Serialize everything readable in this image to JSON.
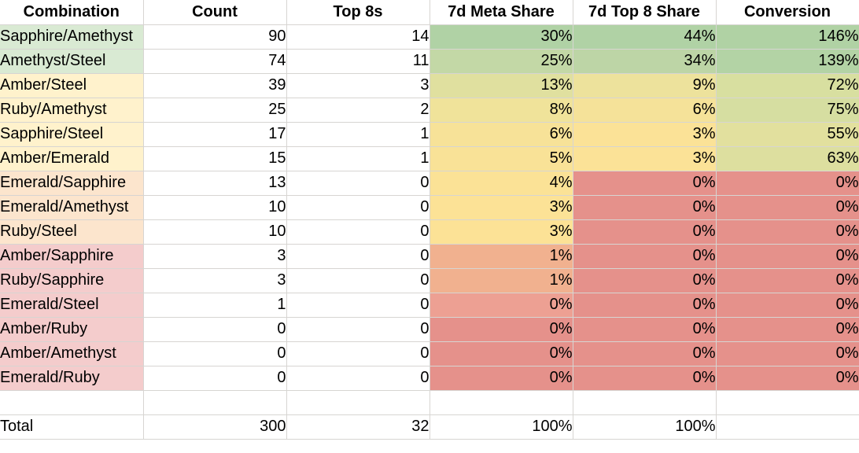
{
  "sheet": {
    "columns": [
      "Combination",
      "Count",
      "Top 8s",
      "7d Meta Share",
      "7d Top 8 Share",
      "Conversion"
    ],
    "rows": [
      {
        "combination": "Sapphire/Amethyst",
        "count": "90",
        "top8s": "14",
        "meta": "30%",
        "top8_share": "44%",
        "conversion": "146%",
        "bg": {
          "combination": "#d9ead3",
          "meta": "#b0d2a5",
          "top8_share": "#b0d2a5",
          "conversion": "#b0d2a4"
        }
      },
      {
        "combination": "Amethyst/Steel",
        "count": "74",
        "top8s": "11",
        "meta": "25%",
        "top8_share": "34%",
        "conversion": "139%",
        "bg": {
          "combination": "#d9ead3",
          "meta": "#c3d8a6",
          "top8_share": "#bdd5a6",
          "conversion": "#b3d3a5"
        }
      },
      {
        "combination": "Amber/Steel",
        "count": "39",
        "top8s": "3",
        "meta": "13%",
        "top8_share": "9%",
        "conversion": "72%",
        "bg": {
          "combination": "#fff2cc",
          "meta": "#e0e09f",
          "top8_share": "#ede29c",
          "conversion": "#d8dfa0"
        }
      },
      {
        "combination": "Ruby/Amethyst",
        "count": "25",
        "top8s": "2",
        "meta": "8%",
        "top8_share": "6%",
        "conversion": "75%",
        "bg": {
          "combination": "#fff2cc",
          "meta": "#f0e39a",
          "top8_share": "#f5e299",
          "conversion": "#d6dea1"
        }
      },
      {
        "combination": "Sapphire/Steel",
        "count": "17",
        "top8s": "1",
        "meta": "6%",
        "top8_share": "3%",
        "conversion": "55%",
        "bg": {
          "combination": "#fff2cc",
          "meta": "#f7e298",
          "top8_share": "#fbe297",
          "conversion": "#e2e09e"
        }
      },
      {
        "combination": "Amber/Emerald",
        "count": "15",
        "top8s": "1",
        "meta": "5%",
        "top8_share": "3%",
        "conversion": "63%",
        "bg": {
          "combination": "#fff2cc",
          "meta": "#f9e297",
          "top8_share": "#fbe297",
          "conversion": "#dddf9f"
        }
      },
      {
        "combination": "Emerald/Sapphire",
        "count": "13",
        "top8s": "0",
        "meta": "4%",
        "top8_share": "0%",
        "conversion": "0%",
        "bg": {
          "combination": "#fce5cd",
          "meta": "#fbe296",
          "top8_share": "#e5918b",
          "conversion": "#e5918b"
        }
      },
      {
        "combination": "Emerald/Amethyst",
        "count": "10",
        "top8s": "0",
        "meta": "3%",
        "top8_share": "0%",
        "conversion": "0%",
        "bg": {
          "combination": "#fce5cd",
          "meta": "#fce296",
          "top8_share": "#e5918b",
          "conversion": "#e5918b"
        }
      },
      {
        "combination": "Ruby/Steel",
        "count": "10",
        "top8s": "0",
        "meta": "3%",
        "top8_share": "0%",
        "conversion": "0%",
        "bg": {
          "combination": "#fce5cd",
          "meta": "#fce296",
          "top8_share": "#e5918b",
          "conversion": "#e5918b"
        }
      },
      {
        "combination": "Amber/Sapphire",
        "count": "3",
        "top8s": "0",
        "meta": "1%",
        "top8_share": "0%",
        "conversion": "0%",
        "bg": {
          "combination": "#f4cccc",
          "meta": "#f1b18f",
          "top8_share": "#e5918b",
          "conversion": "#e5918b"
        }
      },
      {
        "combination": "Ruby/Sapphire",
        "count": "3",
        "top8s": "0",
        "meta": "1%",
        "top8_share": "0%",
        "conversion": "0%",
        "bg": {
          "combination": "#f4cccc",
          "meta": "#f1b18f",
          "top8_share": "#e5918b",
          "conversion": "#e5918b"
        }
      },
      {
        "combination": "Emerald/Steel",
        "count": "1",
        "top8s": "0",
        "meta": "0%",
        "top8_share": "0%",
        "conversion": "0%",
        "bg": {
          "combination": "#f4cccc",
          "meta": "#eda093",
          "top8_share": "#e5918b",
          "conversion": "#e5918b"
        }
      },
      {
        "combination": "Amber/Ruby",
        "count": "0",
        "top8s": "0",
        "meta": "0%",
        "top8_share": "0%",
        "conversion": "0%",
        "bg": {
          "combination": "#f4cccc",
          "meta": "#e5918b",
          "top8_share": "#e5918b",
          "conversion": "#e5918b"
        }
      },
      {
        "combination": "Amber/Amethyst",
        "count": "0",
        "top8s": "0",
        "meta": "0%",
        "top8_share": "0%",
        "conversion": "0%",
        "bg": {
          "combination": "#f4cccc",
          "meta": "#e5918b",
          "top8_share": "#e5918b",
          "conversion": "#e5918b"
        }
      },
      {
        "combination": "Emerald/Ruby",
        "count": "0",
        "top8s": "0",
        "meta": "0%",
        "top8_share": "0%",
        "conversion": "0%",
        "bg": {
          "combination": "#f4cccc",
          "meta": "#e5918b",
          "top8_share": "#e5918b",
          "conversion": "#e5918b"
        }
      }
    ],
    "spacer_row": {
      "combination": "",
      "count": "",
      "top8s": "",
      "meta": "",
      "top8_share": "",
      "conversion": ""
    },
    "total_row": {
      "combination": "Total",
      "count": "300",
      "top8s": "32",
      "meta": "100%",
      "top8_share": "100%",
      "conversion": ""
    }
  },
  "style": {
    "gridline_color": "#d7d5d2",
    "header_bg": "#ffffff",
    "text_color": "#000000",
    "category_fills": {
      "green": "#d9ead3",
      "yellow": "#fff2cc",
      "orange": "#fce5cd",
      "red": "#f4cccc"
    },
    "gradient": {
      "max_green": "#b0d2a5",
      "mid_yellow": "#fce296",
      "min_red": "#e5918b"
    }
  }
}
